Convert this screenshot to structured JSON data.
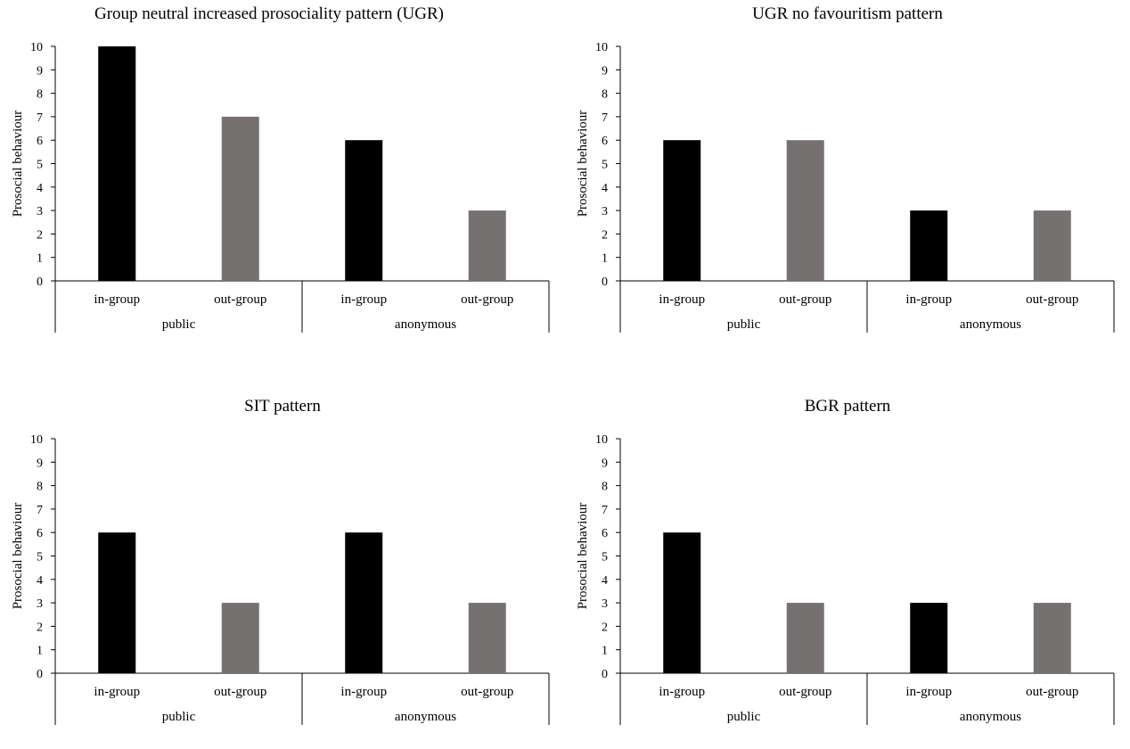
{
  "chart_data": [
    {
      "type": "bar",
      "title": "Group neutral increased prosociality pattern (UGR)",
      "ylabel": "Prosocial behaviour",
      "ylim": [
        0,
        10
      ],
      "yticks": [
        "0",
        "1",
        "2",
        "3",
        "4",
        "5",
        "6",
        "7",
        "8",
        "9",
        "10"
      ],
      "groups": [
        "public",
        "anonymous"
      ],
      "categories": [
        "in-group",
        "out-group",
        "in-group",
        "out-group"
      ],
      "values": [
        10,
        7,
        6,
        3
      ],
      "colors": [
        "#000000",
        "#767171",
        "#000000",
        "#767171"
      ],
      "grid": false
    },
    {
      "type": "bar",
      "title": "UGR no favouritism pattern",
      "ylabel": "Prosocial behaviour",
      "ylim": [
        0,
        10
      ],
      "yticks": [
        "0",
        "1",
        "2",
        "3",
        "4",
        "5",
        "6",
        "7",
        "8",
        "9",
        "10"
      ],
      "groups": [
        "public",
        "anonymous"
      ],
      "categories": [
        "in-group",
        "out-group",
        "in-group",
        "out-group"
      ],
      "values": [
        6,
        6,
        3,
        3
      ],
      "colors": [
        "#000000",
        "#767171",
        "#000000",
        "#767171"
      ],
      "grid": false
    },
    {
      "type": "bar",
      "title": "SIT pattern",
      "ylabel": "Prosocial behaviour",
      "ylim": [
        0,
        10
      ],
      "yticks": [
        "0",
        "1",
        "2",
        "3",
        "4",
        "5",
        "6",
        "7",
        "8",
        "9",
        "10"
      ],
      "groups": [
        "public",
        "anonymous"
      ],
      "categories": [
        "in-group",
        "out-group",
        "in-group",
        "out-group"
      ],
      "values": [
        6,
        3,
        6,
        3
      ],
      "colors": [
        "#000000",
        "#767171",
        "#000000",
        "#767171"
      ],
      "grid": false
    },
    {
      "type": "bar",
      "title": "BGR pattern",
      "ylabel": "Prosocial behaviour",
      "ylim": [
        0,
        10
      ],
      "yticks": [
        "0",
        "1",
        "2",
        "3",
        "4",
        "5",
        "6",
        "7",
        "8",
        "9",
        "10"
      ],
      "groups": [
        "public",
        "anonymous"
      ],
      "categories": [
        "in-group",
        "out-group",
        "in-group",
        "out-group"
      ],
      "values": [
        6,
        3,
        3,
        3
      ],
      "colors": [
        "#000000",
        "#767171",
        "#000000",
        "#767171"
      ],
      "grid": false
    }
  ]
}
